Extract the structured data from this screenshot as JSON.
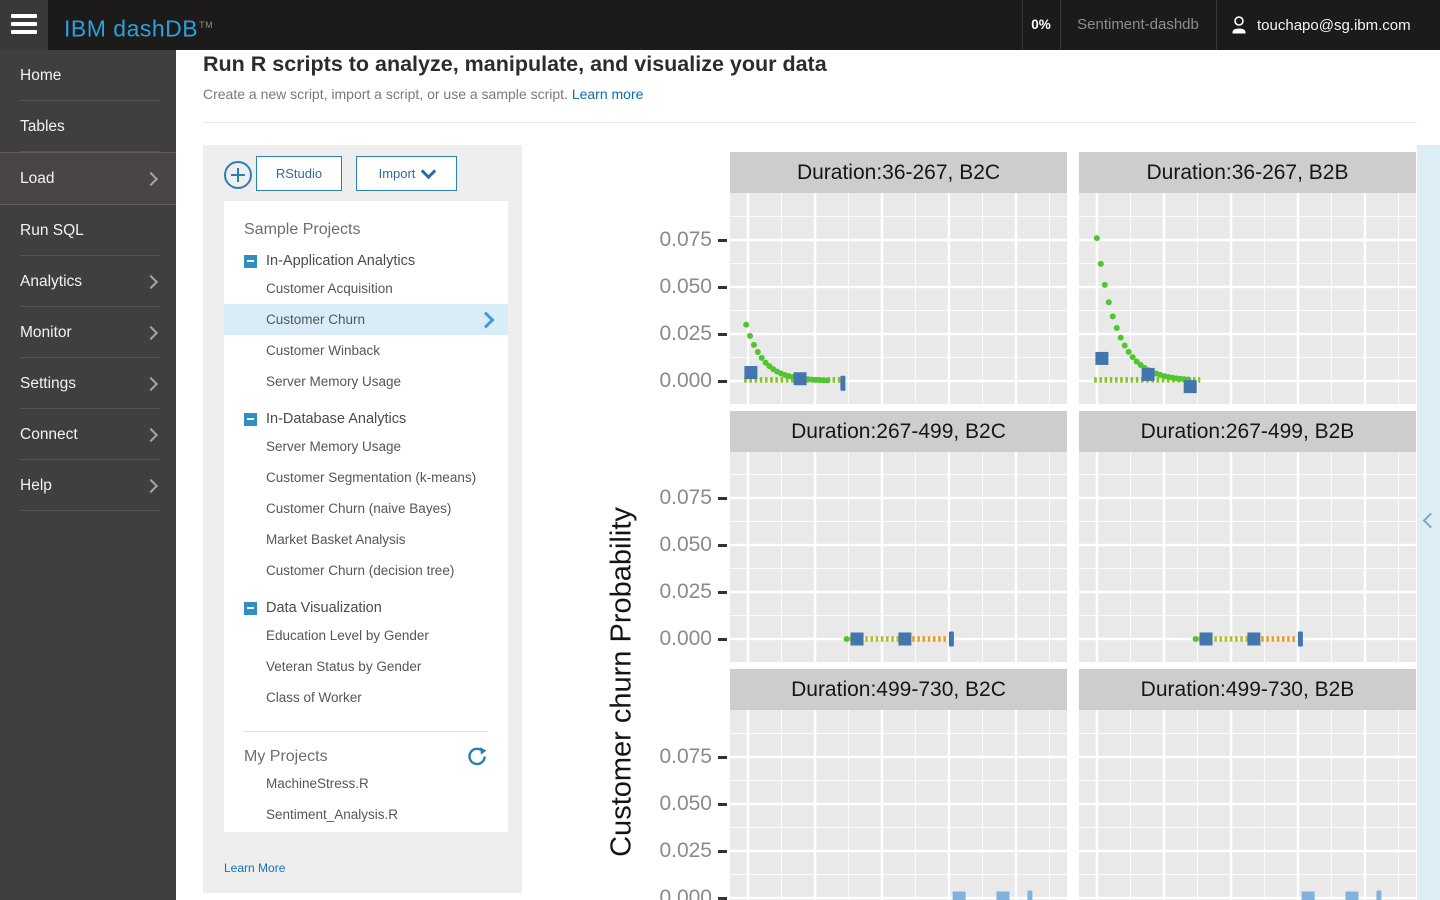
{
  "topbar": {
    "logo": "IBM dashDB",
    "tm": "TM",
    "percent": "0%",
    "database": "Sentiment-dashdb",
    "user": "touchapo@sg.ibm.com"
  },
  "sidebar": {
    "items": [
      {
        "label": "Home",
        "has_submenu": false,
        "active": false
      },
      {
        "label": "Tables",
        "has_submenu": false,
        "active": false
      },
      {
        "label": "Load",
        "has_submenu": true,
        "active": true
      },
      {
        "label": "Run SQL",
        "has_submenu": false,
        "active": false
      },
      {
        "label": "Analytics",
        "has_submenu": true,
        "active": false
      },
      {
        "label": "Monitor",
        "has_submenu": true,
        "active": false
      },
      {
        "label": "Settings",
        "has_submenu": true,
        "active": false
      },
      {
        "label": "Connect",
        "has_submenu": true,
        "active": false
      },
      {
        "label": "Help",
        "has_submenu": true,
        "active": false
      }
    ]
  },
  "page": {
    "title": "Run R scripts to analyze, manipulate, and visualize your data",
    "subtitle": "Create a new script, import a script, or use a sample script.",
    "learn_more": "Learn more"
  },
  "toolbar": {
    "rstudio_label": "RStudio",
    "import_label": "Import"
  },
  "projects": {
    "sample_title": "Sample Projects",
    "groups": [
      {
        "label": "In-Application Analytics",
        "items": [
          {
            "label": "Customer Acquisition",
            "selected": false
          },
          {
            "label": "Customer Churn",
            "selected": true
          },
          {
            "label": "Customer Winback",
            "selected": false
          },
          {
            "label": "Server Memory Usage",
            "selected": false
          }
        ]
      },
      {
        "label": "In-Database Analytics",
        "items": [
          {
            "label": "Server Memory Usage",
            "selected": false
          },
          {
            "label": "Customer Segmentation (k-means)",
            "selected": false
          },
          {
            "label": "Customer Churn (naive Bayes)",
            "selected": false
          },
          {
            "label": "Market Basket Analysis",
            "selected": false
          },
          {
            "label": "Customer Churn (decision tree)",
            "selected": false
          }
        ]
      },
      {
        "label": "Data Visualization",
        "items": [
          {
            "label": "Education Level by Gender",
            "selected": false
          },
          {
            "label": "Veteran Status by Gender",
            "selected": false
          },
          {
            "label": "Class of Worker",
            "selected": false
          }
        ]
      }
    ],
    "my_title": "My Projects",
    "my_items": [
      {
        "label": "MachineStress.R"
      },
      {
        "label": "Sentiment_Analysis.R"
      }
    ],
    "learn_more": "Learn More"
  },
  "chart_data": {
    "type": "scatter",
    "ylabel": "Customer churn Probability",
    "yticks": [
      "0.075",
      "0.050",
      "0.025",
      "0.000"
    ],
    "ytick_values": [
      0.075,
      0.05,
      0.025,
      0.0
    ],
    "ylim": [
      -0.012,
      0.095
    ],
    "grid": "white major/minor gridlines on gray panel",
    "legend": "none visible",
    "x_axis": "cropped out of view (points stored as x_frac of panel width)",
    "facet_layout": {
      "rows": 3,
      "cols": 2
    },
    "colors": {
      "curve_green": "#4fc62e",
      "baseline_chartreuse": "#86c41d",
      "mid_yellowgreen": "#b5bd27",
      "mid_orange": "#ee9a22",
      "marker_blue": "#4376ad",
      "marker_lightblue": "#7fb3de"
    },
    "facets": [
      {
        "title": "Duration:36-267, B2C",
        "row": 0,
        "col": 0,
        "series": [
          {
            "name": "baseline-band",
            "type": "band",
            "color": "#86c41d",
            "x1": 0.042,
            "x2": 0.34,
            "v": 0.0006
          },
          {
            "name": "hazard-curve",
            "type": "dots",
            "color": "#4fc62e",
            "points": [
              [
                0.048,
                0.03
              ],
              [
                0.0595,
                0.024
              ],
              [
                0.071,
                0.0192
              ],
              [
                0.0825,
                0.0154
              ],
              [
                0.094,
                0.0123
              ],
              [
                0.1055,
                0.0098
              ],
              [
                0.117,
                0.0079
              ],
              [
                0.1285,
                0.0063
              ],
              [
                0.14,
                0.005
              ],
              [
                0.1515,
                0.004
              ],
              [
                0.163,
                0.0032
              ],
              [
                0.1745,
                0.0026
              ],
              [
                0.186,
                0.0021
              ],
              [
                0.1975,
                0.0017
              ],
              [
                0.209,
                0.0013
              ],
              [
                0.2205,
                0.0011
              ],
              [
                0.232,
                0.0009
              ],
              [
                0.2435,
                0.0007
              ],
              [
                0.255,
                0.0006
              ],
              [
                0.2665,
                0.0005
              ],
              [
                0.278,
                0.0004
              ],
              [
                0.2895,
                0.0003
              ]
            ]
          },
          {
            "name": "segment-markers",
            "type": "squares",
            "color": "#4376ad",
            "points": [
              [
                0.062,
                0.0045
              ],
              [
                0.208,
                0.0012
              ]
            ]
          },
          {
            "name": "end-tick",
            "type": "tick",
            "color": "#4376ad",
            "points": [
              [
                0.335,
                -0.0012
              ]
            ]
          }
        ]
      },
      {
        "title": "Duration:36-267, B2B",
        "row": 0,
        "col": 1,
        "series": [
          {
            "name": "baseline-band",
            "type": "band",
            "color": "#86c41d",
            "x1": 0.045,
            "x2": 0.36,
            "v": 0.0006
          },
          {
            "name": "hazard-curve",
            "type": "dots",
            "color": "#4fc62e",
            "points": [
              [
                0.053,
                0.076
              ],
              [
                0.0648,
                0.0623
              ],
              [
                0.0766,
                0.0511
              ],
              [
                0.0884,
                0.0419
              ],
              [
                0.1002,
                0.0344
              ],
              [
                0.112,
                0.0282
              ],
              [
                0.1238,
                0.0231
              ],
              [
                0.1356,
                0.0189
              ],
              [
                0.1474,
                0.0155
              ],
              [
                0.1592,
                0.0127
              ],
              [
                0.171,
                0.0104
              ],
              [
                0.1828,
                0.0086
              ],
              [
                0.1946,
                0.007
              ],
              [
                0.2064,
                0.0058
              ],
              [
                0.2182,
                0.0047
              ],
              [
                0.23,
                0.0039
              ],
              [
                0.2418,
                0.0032
              ],
              [
                0.2536,
                0.0026
              ],
              [
                0.2654,
                0.0021
              ],
              [
                0.2772,
                0.0018
              ],
              [
                0.289,
                0.0014
              ],
              [
                0.3008,
                0.0012
              ],
              [
                0.3126,
                0.001
              ],
              [
                0.3244,
                0.0008
              ]
            ]
          },
          {
            "name": "segment-markers",
            "type": "squares",
            "color": "#4376ad",
            "points": [
              [
                0.068,
                0.012
              ],
              [
                0.205,
                0.0035
              ],
              [
                0.33,
                -0.003
              ]
            ]
          }
        ]
      },
      {
        "title": "Duration:267-499, B2C",
        "row": 1,
        "col": 0,
        "series": [
          {
            "name": "lead-dot",
            "type": "dots",
            "color": "#4fc62e",
            "points": [
              [
                0.346,
                0.0
              ]
            ]
          },
          {
            "name": "band-yellowgreen",
            "type": "band",
            "color": "#b5bd27",
            "x1": 0.355,
            "x2": 0.515,
            "v": 0.0
          },
          {
            "name": "band-orange",
            "type": "band",
            "color": "#ee9a22",
            "x1": 0.525,
            "x2": 0.648,
            "v": 0.0
          },
          {
            "name": "segment-markers",
            "type": "squares",
            "color": "#4376ad",
            "points": [
              [
                0.377,
                0.0
              ],
              [
                0.519,
                0.0
              ]
            ]
          },
          {
            "name": "end-tick",
            "type": "tick",
            "color": "#4376ad",
            "points": [
              [
                0.657,
                0.0
              ]
            ]
          }
        ]
      },
      {
        "title": "Duration:267-499, B2B",
        "row": 1,
        "col": 1,
        "series": [
          {
            "name": "lead-dot",
            "type": "dots",
            "color": "#4fc62e",
            "points": [
              [
                0.346,
                0.0
              ]
            ]
          },
          {
            "name": "band-yellowgreen",
            "type": "band",
            "color": "#b5bd27",
            "x1": 0.355,
            "x2": 0.515,
            "v": 0.0
          },
          {
            "name": "band-orange",
            "type": "band",
            "color": "#ee9a22",
            "x1": 0.525,
            "x2": 0.648,
            "v": 0.0
          },
          {
            "name": "segment-markers",
            "type": "squares",
            "color": "#4376ad",
            "points": [
              [
                0.377,
                0.0
              ],
              [
                0.519,
                0.0
              ]
            ]
          },
          {
            "name": "end-tick",
            "type": "tick",
            "color": "#4376ad",
            "points": [
              [
                0.657,
                0.0
              ]
            ]
          }
        ]
      },
      {
        "title": "Duration:499-730, B2C",
        "row": 2,
        "col": 0,
        "series": [
          {
            "name": "segment-markers",
            "type": "squares",
            "color": "#7fb3de",
            "points": [
              [
                0.68,
                0.0
              ],
              [
                0.81,
                0.0
              ]
            ]
          },
          {
            "name": "end-tick",
            "type": "tick",
            "color": "#7fb3de",
            "points": [
              [
                0.89,
                0.0
              ]
            ]
          }
        ]
      },
      {
        "title": "Duration:499-730, B2B",
        "row": 2,
        "col": 1,
        "series": [
          {
            "name": "segment-markers",
            "type": "squares",
            "color": "#7fb3de",
            "points": [
              [
                0.68,
                0.0
              ],
              [
                0.81,
                0.0
              ]
            ]
          },
          {
            "name": "end-tick",
            "type": "tick",
            "color": "#7fb3de",
            "points": [
              [
                0.89,
                0.0
              ]
            ]
          }
        ]
      }
    ]
  }
}
